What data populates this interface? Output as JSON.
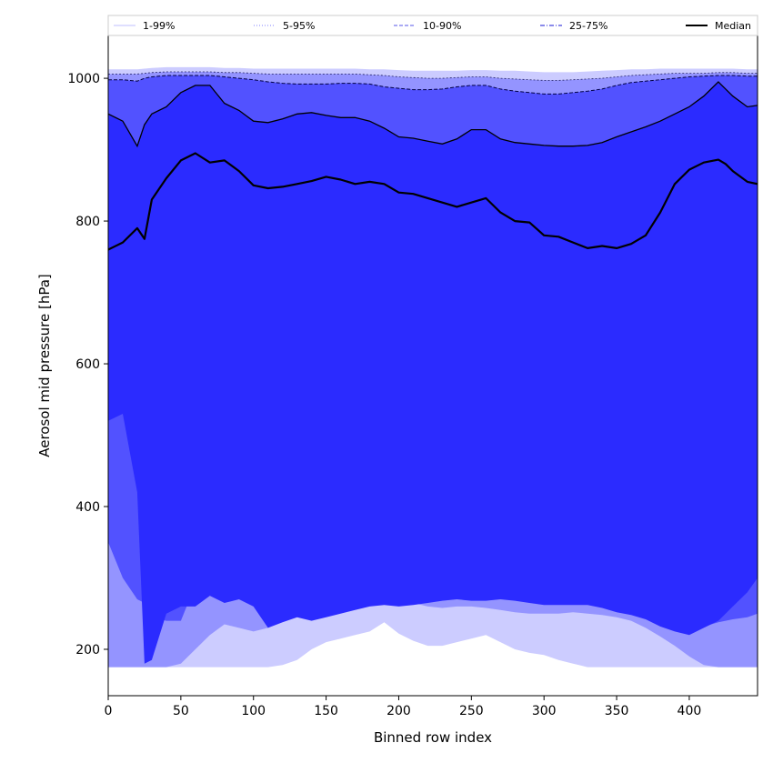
{
  "chart_data": {
    "type": "area",
    "xlabel": "Binned row index",
    "ylabel": "Aerosol mid pressure [hPa]",
    "xlim": [
      0,
      447
    ],
    "ylim": [
      135,
      1060
    ],
    "xticks": [
      0,
      50,
      100,
      150,
      200,
      250,
      300,
      350,
      400
    ],
    "yticks": [
      200,
      400,
      600,
      800,
      1000
    ],
    "legend_position": "top",
    "legend": [
      {
        "label": "1-99%",
        "color": "#ccccff",
        "style": "solid"
      },
      {
        "label": "5-95%",
        "color": "#9999ff",
        "style": "dotted"
      },
      {
        "label": "10-90%",
        "color": "#7777ee",
        "style": "dashed"
      },
      {
        "label": "25-75%",
        "color": "#4444dd",
        "style": "dashdot"
      },
      {
        "label": "Median",
        "color": "#000000",
        "style": "solid"
      }
    ],
    "band_colors": {
      "p1_99": "#ccccff",
      "p5_95": "#9494ff",
      "p10_90": "#5252ff",
      "p25_75": "#2b2bff",
      "median": "#000000"
    },
    "x": [
      0,
      10,
      20,
      25,
      30,
      40,
      50,
      60,
      70,
      80,
      90,
      100,
      110,
      120,
      130,
      140,
      150,
      160,
      170,
      180,
      190,
      200,
      210,
      220,
      230,
      240,
      250,
      260,
      270,
      280,
      290,
      300,
      310,
      320,
      330,
      340,
      350,
      360,
      370,
      380,
      390,
      400,
      410,
      420,
      425,
      430,
      440,
      447
    ],
    "series": [
      {
        "name": "1-99%",
        "kind": "lower",
        "values": [
          175,
          175,
          175,
          175,
          175,
          175,
          175,
          175,
          175,
          175,
          175,
          175,
          175,
          178,
          185,
          200,
          210,
          215,
          220,
          225,
          238,
          222,
          212,
          205,
          205,
          210,
          215,
          220,
          210,
          200,
          195,
          192,
          185,
          180,
          175,
          175,
          175,
          175,
          175,
          175,
          175,
          175,
          175,
          175,
          175,
          175,
          175,
          175
        ]
      },
      {
        "name": "5-95%",
        "kind": "lower",
        "values": [
          175,
          175,
          175,
          175,
          175,
          175,
          180,
          200,
          220,
          235,
          230,
          225,
          230,
          240,
          255,
          268,
          278,
          285,
          280,
          278,
          290,
          272,
          265,
          260,
          258,
          260,
          260,
          258,
          255,
          252,
          250,
          250,
          250,
          252,
          250,
          248,
          245,
          240,
          230,
          218,
          205,
          190,
          178,
          175,
          175,
          175,
          175,
          175
        ]
      },
      {
        "name": "10-90%",
        "kind": "lower",
        "values": [
          350,
          300,
          270,
          265,
          245,
          240,
          240,
          290,
          280,
          285,
          320,
          315,
          280,
          305,
          330,
          370,
          390,
          440,
          390,
          385,
          420,
          380,
          350,
          330,
          315,
          305,
          298,
          290,
          285,
          280,
          275,
          272,
          275,
          278,
          282,
          278,
          272,
          262,
          252,
          240,
          232,
          228,
          232,
          238,
          240,
          242,
          245,
          250
        ]
      },
      {
        "name": "25-75%",
        "kind": "lower",
        "values": [
          520,
          530,
          420,
          180,
          185,
          250,
          260,
          260,
          275,
          265,
          270,
          260,
          230,
          238,
          245,
          240,
          245,
          250,
          255,
          260,
          262,
          260,
          262,
          265,
          268,
          270,
          268,
          268,
          270,
          268,
          265,
          262,
          262,
          262,
          262,
          258,
          252,
          248,
          242,
          232,
          225,
          220,
          230,
          240,
          250,
          260,
          280,
          300
        ]
      },
      {
        "name": "Median",
        "kind": "center",
        "values": [
          760,
          770,
          790,
          775,
          830,
          860,
          885,
          895,
          882,
          885,
          870,
          850,
          846,
          848,
          852,
          856,
          862,
          858,
          852,
          855,
          852,
          840,
          838,
          832,
          826,
          820,
          826,
          832,
          812,
          800,
          798,
          780,
          778,
          770,
          762,
          765,
          762,
          768,
          780,
          812,
          852,
          872,
          882,
          886,
          880,
          870,
          855,
          852
        ]
      },
      {
        "name": "25-75%",
        "kind": "upper",
        "values": [
          950,
          940,
          905,
          935,
          950,
          960,
          980,
          990,
          990,
          965,
          955,
          940,
          938,
          943,
          950,
          952,
          948,
          945,
          945,
          940,
          930,
          918,
          916,
          912,
          908,
          915,
          928,
          928,
          915,
          910,
          908,
          906,
          905,
          905,
          906,
          910,
          918,
          925,
          932,
          940,
          950,
          960,
          975,
          995,
          985,
          975,
          960,
          962
        ]
      },
      {
        "name": "10-90%",
        "kind": "upper",
        "values": [
          998,
          998,
          996,
          1000,
          1002,
          1004,
          1004,
          1004,
          1004,
          1002,
          1000,
          998,
          995,
          993,
          992,
          992,
          992,
          993,
          993,
          992,
          988,
          986,
          984,
          984,
          985,
          988,
          990,
          990,
          985,
          982,
          980,
          978,
          978,
          980,
          982,
          985,
          990,
          994,
          996,
          998,
          1000,
          1002,
          1003,
          1004,
          1004,
          1004,
          1003,
          1003
        ]
      },
      {
        "name": "5-95%",
        "kind": "upper",
        "values": [
          1006,
          1006,
          1006,
          1007,
          1008,
          1009,
          1009,
          1009,
          1009,
          1008,
          1008,
          1007,
          1006,
          1006,
          1006,
          1006,
          1006,
          1006,
          1006,
          1005,
          1004,
          1002,
          1001,
          1000,
          1000,
          1001,
          1002,
          1002,
          1000,
          999,
          998,
          997,
          997,
          998,
          999,
          1000,
          1002,
          1004,
          1005,
          1006,
          1007,
          1007,
          1007,
          1008,
          1008,
          1008,
          1007,
          1007
        ]
      },
      {
        "name": "1-99%",
        "kind": "upper",
        "values": [
          1012,
          1012,
          1012,
          1013,
          1014,
          1015,
          1015,
          1015,
          1015,
          1014,
          1014,
          1013,
          1013,
          1013,
          1013,
          1013,
          1013,
          1013,
          1013,
          1012,
          1012,
          1011,
          1010,
          1010,
          1010,
          1010,
          1011,
          1011,
          1010,
          1010,
          1009,
          1008,
          1008,
          1008,
          1009,
          1010,
          1011,
          1012,
          1012,
          1013,
          1013,
          1013,
          1013,
          1013,
          1013,
          1013,
          1012,
          1012
        ]
      }
    ]
  }
}
